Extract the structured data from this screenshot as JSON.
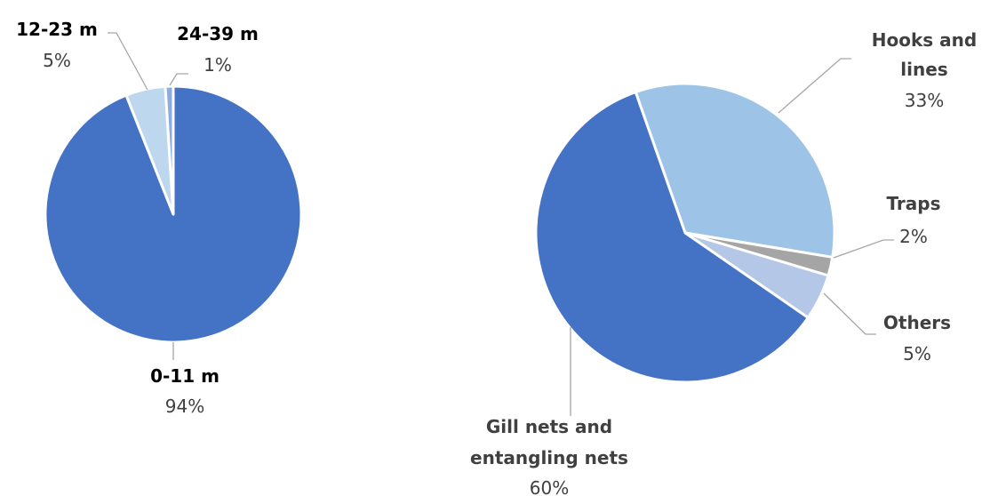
{
  "chart_data": [
    {
      "type": "pie",
      "slices": [
        {
          "label": "0-11 m",
          "value": 94,
          "value_label": "94%",
          "color": "#4472c4"
        },
        {
          "label": "12-23 m",
          "value": 5,
          "value_label": "5%",
          "color": "#bdd7ee"
        },
        {
          "label": "24-39 m",
          "value": 1,
          "value_label": "1%",
          "color": "#8faadc"
        }
      ]
    },
    {
      "type": "pie",
      "slices": [
        {
          "label": "Hooks and lines",
          "label_lines": [
            "Hooks and",
            "lines"
          ],
          "value": 33,
          "value_label": "33%",
          "color": "#9dc3e6"
        },
        {
          "label": "Traps",
          "label_lines": [
            "Traps"
          ],
          "value": 2,
          "value_label": "2%",
          "color": "#a5a5a5"
        },
        {
          "label": "Others",
          "label_lines": [
            "Others"
          ],
          "value": 5,
          "value_label": "5%",
          "color": "#b4c7e7"
        },
        {
          "label": "Gill nets and entangling nets",
          "label_lines": [
            "Gill nets and",
            "entangling nets"
          ],
          "value": 60,
          "value_label": "60%",
          "color": "#4472c4"
        }
      ]
    }
  ]
}
